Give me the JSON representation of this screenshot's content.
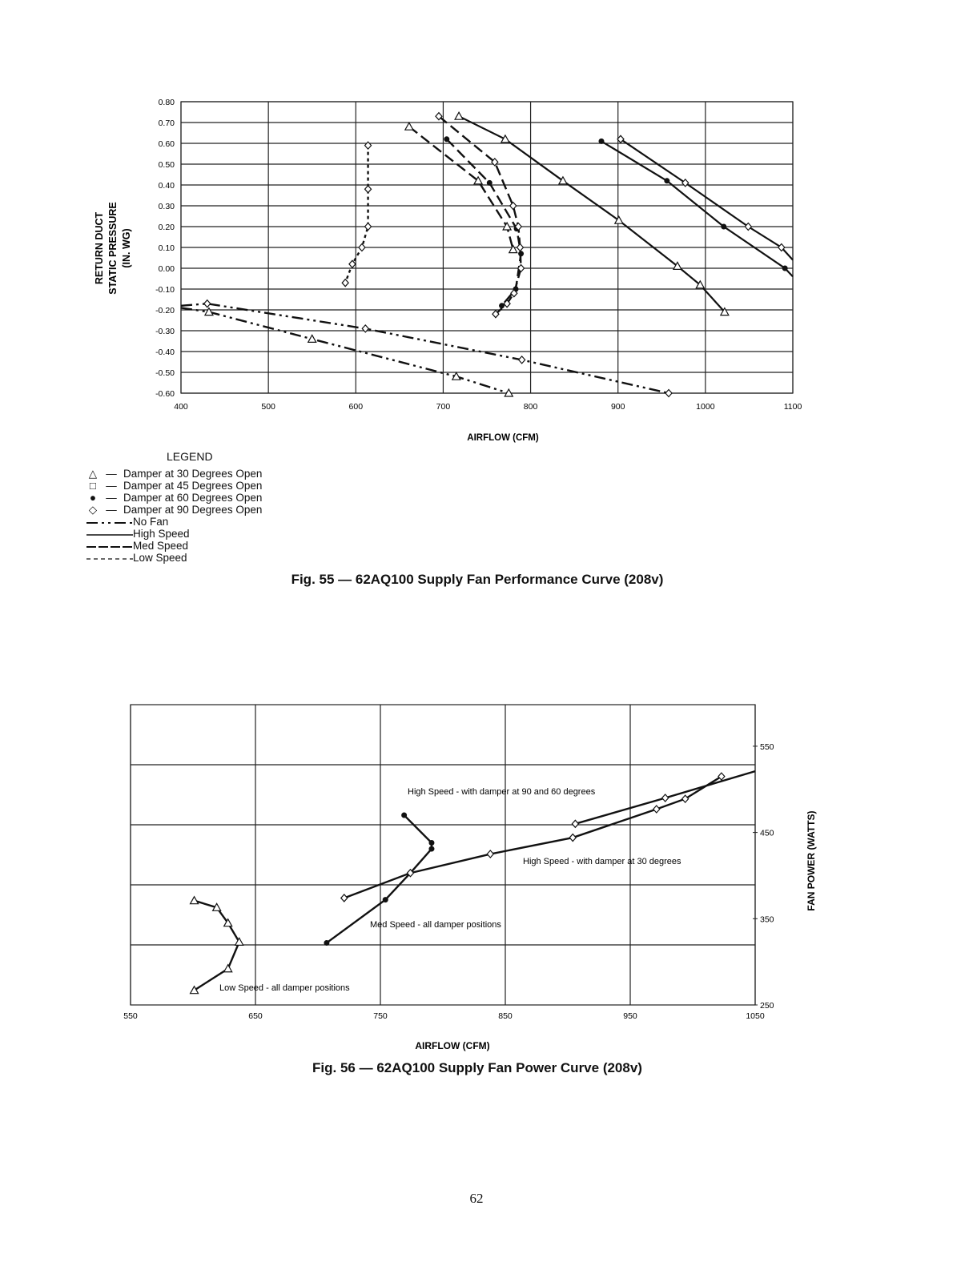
{
  "legend": {
    "title": "LEGEND",
    "markers": [
      {
        "symbol": "△",
        "label": "Damper at 30 Degrees Open"
      },
      {
        "symbol": "□",
        "label": "Damper at 45 Degrees Open"
      },
      {
        "symbol": "●",
        "label": "Damper at 60 Degrees Open"
      },
      {
        "symbol": "◇",
        "label": "Damper at 90 Degrees Open"
      }
    ],
    "lines": [
      {
        "style": "dash-dot",
        "label": "No Fan"
      },
      {
        "style": "solid",
        "label": "High Speed"
      },
      {
        "style": "long-dash",
        "label": "Med Speed"
      },
      {
        "style": "short-dash",
        "label": "Low Speed"
      }
    ]
  },
  "captions": {
    "fig55": "Fig. 55 — 62AQ100 Supply Fan Performance Curve (208v)",
    "fig56": "Fig. 56 — 62AQ100 Supply Fan Power Curve (208v)"
  },
  "page_number": "62",
  "chart_data": [
    {
      "type": "line",
      "title": "62AQ100 Supply Fan Performance Curve (208v)",
      "xlabel": "AIRFLOW (CFM)",
      "ylabel_lines": [
        "RETURN DUCT",
        "STATIC PRESSURE",
        "(IN. WG)"
      ],
      "xlim": [
        400,
        1100
      ],
      "ylim": [
        -0.6,
        0.8
      ],
      "xticks": [
        "400",
        "500",
        "600",
        "700",
        "800",
        "900",
        "1000",
        "1100"
      ],
      "yticks": [
        "0.80",
        "0.70",
        "0.60",
        "0.50",
        "0.40",
        "0.30",
        "0.20",
        "0.10",
        "0.00",
        "-0.10",
        "-0.20",
        "-0.30",
        "-0.40",
        "-0.50",
        "-0.60"
      ],
      "grid": true,
      "series": [
        {
          "name": "Low Speed - Damper 90",
          "speed": "low",
          "marker": "diamond",
          "x": [
            614,
            614,
            614,
            607,
            596,
            588
          ],
          "y": [
            0.59,
            0.38,
            0.2,
            0.1,
            0.02,
            -0.07
          ]
        },
        {
          "name": "Med Speed - Damper 30",
          "speed": "med",
          "marker": "triangle",
          "x": [
            661,
            740,
            773,
            780
          ],
          "y": [
            0.68,
            0.42,
            0.2,
            0.09
          ]
        },
        {
          "name": "Med Speed - Damper 60",
          "speed": "med",
          "marker": "circle",
          "x": [
            704,
            753,
            784,
            789,
            783,
            767
          ],
          "y": [
            0.62,
            0.41,
            0.19,
            0.07,
            -0.1,
            -0.18
          ]
        },
        {
          "name": "Med Speed - Damper 90",
          "speed": "med",
          "marker": "diamond",
          "x": [
            695,
            759,
            780,
            786,
            788,
            789,
            781,
            773,
            760
          ],
          "y": [
            0.73,
            0.51,
            0.3,
            0.2,
            0.1,
            0.0,
            -0.12,
            -0.17,
            -0.22
          ]
        },
        {
          "name": "High Speed - Damper 30",
          "speed": "high",
          "marker": "triangle",
          "x": [
            718,
            771,
            837,
            901,
            968,
            994,
            1022
          ],
          "y": [
            0.73,
            0.62,
            0.42,
            0.23,
            0.01,
            -0.08,
            -0.21
          ]
        },
        {
          "name": "High Speed - Damper 60",
          "speed": "high",
          "marker": "circle",
          "x": [
            881,
            956,
            1021,
            1091,
            1100
          ],
          "y": [
            0.61,
            0.42,
            0.2,
            0.0,
            -0.04
          ]
        },
        {
          "name": "High Speed - Damper 90",
          "speed": "high",
          "marker": "diamond",
          "x": [
            903,
            977,
            1049,
            1087,
            1100
          ],
          "y": [
            0.62,
            0.41,
            0.2,
            0.1,
            0.04
          ]
        },
        {
          "name": "No Fan - Damper 90",
          "speed": "nofan",
          "marker": "diamond",
          "x": [
            400,
            430,
            611,
            790,
            958
          ],
          "y": [
            -0.18,
            -0.17,
            -0.29,
            -0.44,
            -0.6
          ]
        },
        {
          "name": "No Fan - Damper 30",
          "speed": "nofan",
          "marker": "triangle",
          "x": [
            400,
            432,
            550,
            715,
            775
          ],
          "y": [
            -0.19,
            -0.21,
            -0.34,
            -0.52,
            -0.6
          ]
        }
      ]
    },
    {
      "type": "line",
      "title": "62AQ100 Supply Fan Power Curve (208v)",
      "xlabel": "AIRFLOW (CFM)",
      "ylabel": "FAN POWER (WATTS)",
      "xlim": [
        550,
        1050
      ],
      "ylim": [
        250,
        570
      ],
      "xticks": [
        "550",
        "650",
        "750",
        "850",
        "950",
        "1050"
      ],
      "yticks": [
        "550",
        "450",
        "350",
        "250"
      ],
      "y_axis_side": "right",
      "grid": true,
      "series": [
        {
          "name": "Low Speed - all damper positions",
          "marker": "triangle",
          "x": [
            601,
            619,
            628,
            637,
            628,
            601
          ],
          "y": [
            371,
            363,
            345,
            323,
            292,
            267
          ]
        },
        {
          "name": "Med Speed - all damper positions",
          "marker": "circle",
          "x": [
            769,
            791,
            791,
            774,
            754,
            707
          ],
          "y": [
            470,
            438,
            431,
            403,
            372,
            322
          ]
        },
        {
          "name": "High Speed - with damper at 30 degrees",
          "marker": "diamond",
          "x": [
            721,
            774,
            838,
            904,
            971,
            994,
            1023
          ],
          "y": [
            374,
            403,
            425,
            444,
            477,
            489,
            515
          ]
        },
        {
          "name": "High Speed - with damper at 90 and 60 degrees",
          "marker": "diamond",
          "x": [
            906,
            978,
            1050
          ],
          "y": [
            460,
            490,
            521
          ]
        }
      ],
      "annotations": [
        "High Speed - with damper at 90 and 60 degrees",
        "High Speed - with damper at 30 degrees",
        "Med Speed - all damper positions",
        "Low Speed - all damper positions"
      ]
    }
  ]
}
